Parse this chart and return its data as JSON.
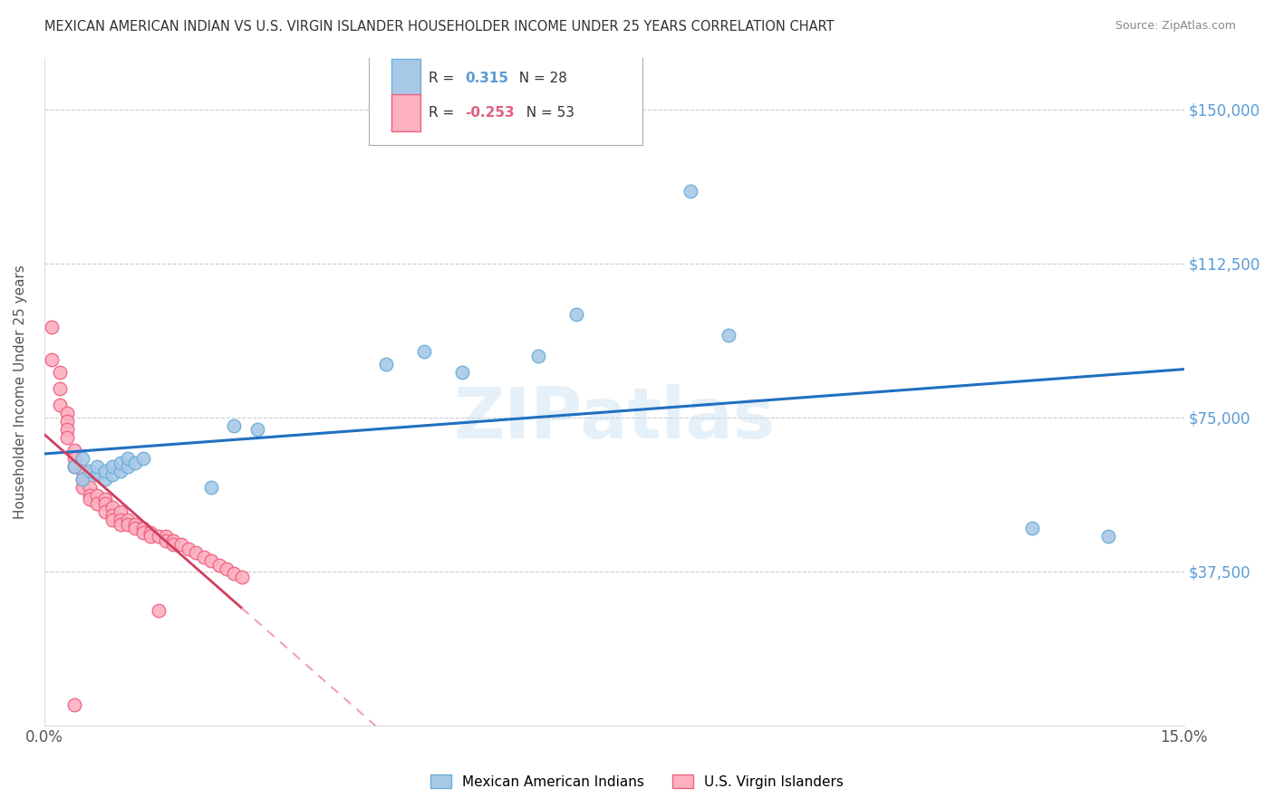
{
  "title": "MEXICAN AMERICAN INDIAN VS U.S. VIRGIN ISLANDER HOUSEHOLDER INCOME UNDER 25 YEARS CORRELATION CHART",
  "source": "Source: ZipAtlas.com",
  "ylabel": "Householder Income Under 25 years",
  "xlim": [
    0.0,
    0.15
  ],
  "ylim": [
    0,
    162500
  ],
  "xticks": [
    0.0,
    0.03,
    0.06,
    0.09,
    0.12,
    0.15
  ],
  "xticklabels": [
    "0.0%",
    "",
    "",
    "",
    "",
    "15.0%"
  ],
  "ytick_positions": [
    0,
    37500,
    75000,
    112500,
    150000
  ],
  "ytick_labels": [
    "",
    "$37,500",
    "$75,000",
    "$112,500",
    "$150,000"
  ],
  "grid_color": "#cccccc",
  "background_color": "#ffffff",
  "watermark": "ZIPatlas",
  "blue_scatter_color": "#a8c8e8",
  "blue_edge_color": "#6baed6",
  "pink_scatter_color": "#fcb0c0",
  "pink_edge_color": "#f06080",
  "blue_line_color": "#2070c0",
  "pink_line_color": "#d04060",
  "pink_dash_color": "#f0a0b0",
  "blue_x": [
    0.004,
    0.005,
    0.005,
    0.006,
    0.007,
    0.007,
    0.008,
    0.008,
    0.009,
    0.009,
    0.01,
    0.01,
    0.011,
    0.011,
    0.012,
    0.013,
    0.022,
    0.025,
    0.028,
    0.045,
    0.05,
    0.055,
    0.065,
    0.07,
    0.085,
    0.09,
    0.13,
    0.14
  ],
  "blue_y": [
    63000,
    60000,
    65000,
    62000,
    61000,
    63000,
    60000,
    62000,
    61000,
    63000,
    62000,
    64000,
    63000,
    65000,
    64000,
    65000,
    58000,
    73000,
    72000,
    88000,
    91000,
    86000,
    90000,
    100000,
    130000,
    95000,
    48000,
    46000
  ],
  "pink_x": [
    0.001,
    0.001,
    0.002,
    0.002,
    0.002,
    0.003,
    0.003,
    0.003,
    0.003,
    0.004,
    0.004,
    0.004,
    0.005,
    0.005,
    0.005,
    0.006,
    0.006,
    0.006,
    0.007,
    0.007,
    0.008,
    0.008,
    0.008,
    0.009,
    0.009,
    0.009,
    0.01,
    0.01,
    0.01,
    0.011,
    0.011,
    0.012,
    0.012,
    0.013,
    0.013,
    0.014,
    0.014,
    0.015,
    0.016,
    0.016,
    0.017,
    0.017,
    0.018,
    0.019,
    0.02,
    0.021,
    0.022,
    0.023,
    0.024,
    0.025,
    0.026,
    0.015,
    0.004
  ],
  "pink_y": [
    97000,
    89000,
    86000,
    82000,
    78000,
    76000,
    74000,
    72000,
    70000,
    67000,
    65000,
    63000,
    62000,
    60000,
    58000,
    58000,
    56000,
    55000,
    56000,
    54000,
    55000,
    54000,
    52000,
    53000,
    51000,
    50000,
    52000,
    50000,
    49000,
    50000,
    49000,
    49000,
    48000,
    48000,
    47000,
    47000,
    46000,
    46000,
    46000,
    45000,
    45000,
    44000,
    44000,
    43000,
    42000,
    41000,
    40000,
    39000,
    38000,
    37000,
    36000,
    28000,
    5000
  ]
}
